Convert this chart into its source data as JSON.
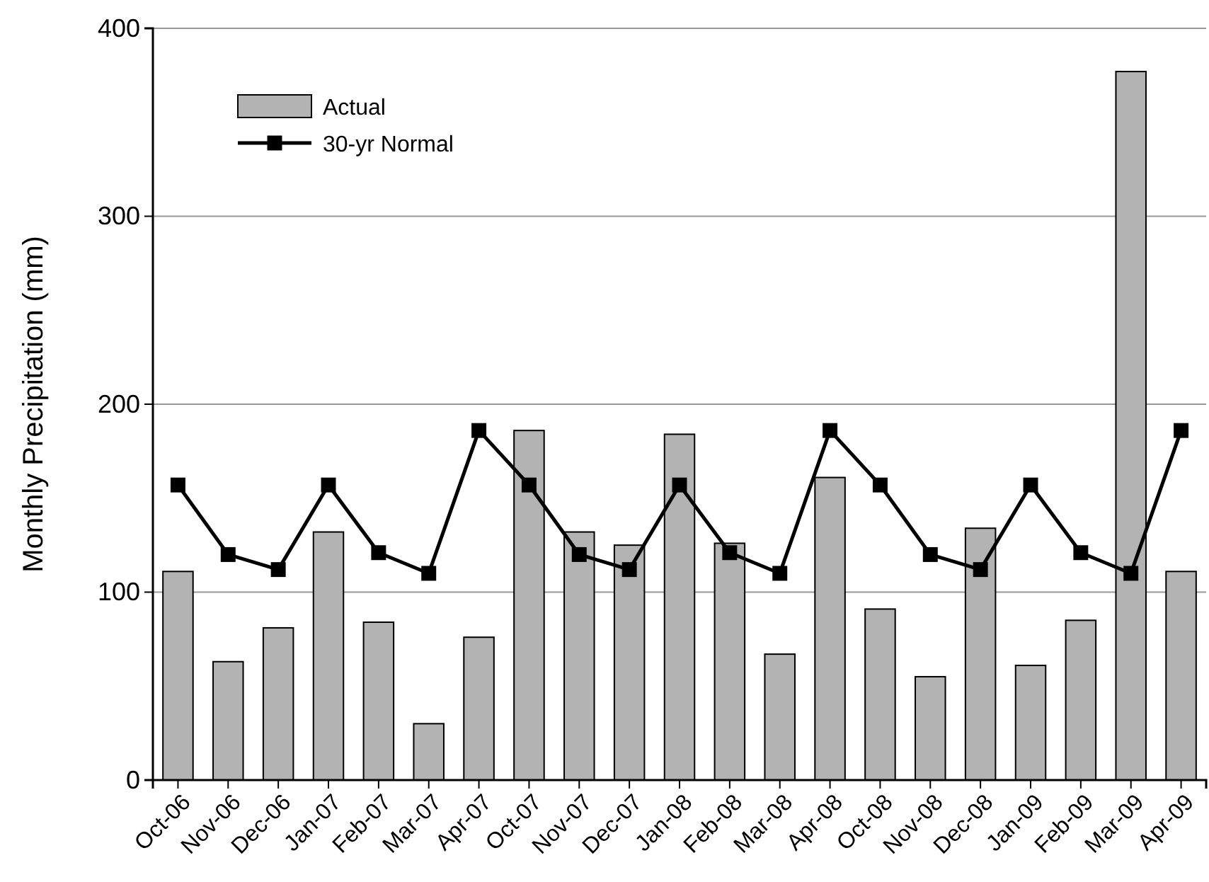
{
  "chart_data": {
    "type": "bar",
    "ylabel": "Monthly Precipitation (mm)",
    "categories": [
      "Oct-06",
      "Nov-06",
      "Dec-06",
      "Jan-07",
      "Feb-07",
      "Mar-07",
      "Apr-07",
      "Oct-07",
      "Nov-07",
      "Dec-07",
      "Jan-08",
      "Feb-08",
      "Mar-08",
      "Apr-08",
      "Oct-08",
      "Nov-08",
      "Dec-08",
      "Jan-09",
      "Feb-09",
      "Mar-09",
      "Apr-09"
    ],
    "series": [
      {
        "name": "Actual",
        "color": "#b3b3b3",
        "values": [
          111,
          63,
          81,
          132,
          84,
          30,
          76,
          186,
          132,
          125,
          184,
          126,
          67,
          161,
          91,
          55,
          134,
          61,
          85,
          377,
          111
        ]
      },
      {
        "name": "30-yr Normal",
        "type": "line",
        "color": "#000000",
        "values": [
          157,
          120,
          112,
          157,
          121,
          110,
          186,
          157,
          120,
          112,
          157,
          121,
          110,
          186,
          157,
          120,
          112,
          157,
          121,
          110,
          186
        ]
      }
    ],
    "ylim": [
      0,
      400
    ],
    "yticks": [
      0,
      100,
      200,
      300,
      400
    ],
    "grid": "y",
    "legend": "top left",
    "marker": "square",
    "line_style": "solid"
  }
}
